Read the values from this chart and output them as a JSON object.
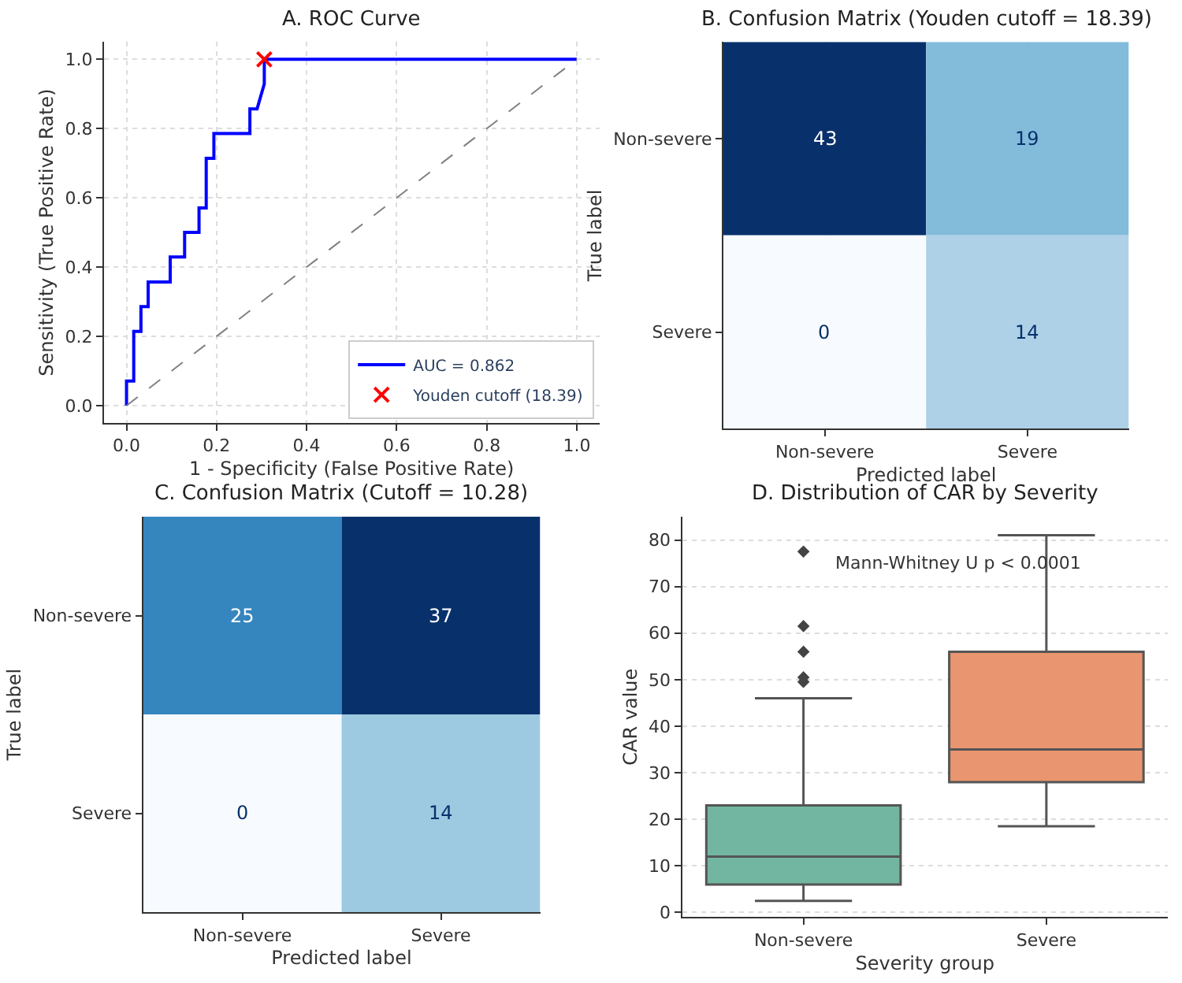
{
  "chart_data": [
    {
      "type": "line",
      "title": "A. ROC Curve",
      "xlabel": "1 - Specificity (False Positive Rate)",
      "ylabel": "Sensitivity (True Positive Rate)",
      "xlim": [
        -0.05,
        1.05
      ],
      "ylim": [
        -0.05,
        1.05
      ],
      "xticks": [
        {
          "value": 0,
          "label": "0.0"
        },
        {
          "value": 0.2,
          "label": "0.2"
        },
        {
          "value": 0.4,
          "label": "0.4"
        },
        {
          "value": 0.6,
          "label": "0.6"
        },
        {
          "value": 0.8,
          "label": "0.8"
        },
        {
          "value": 1,
          "label": "1.0"
        }
      ],
      "yticks": [
        {
          "value": 0,
          "label": "0.0"
        },
        {
          "value": 0.2,
          "label": "0.2"
        },
        {
          "value": 0.4,
          "label": "0.4"
        },
        {
          "value": 0.6,
          "label": "0.6"
        },
        {
          "value": 0.8,
          "label": "0.8"
        },
        {
          "value": 1,
          "label": "1.0"
        }
      ],
      "grid": true,
      "legend": "bottom right",
      "series": [
        {
          "name": "AUC = 0.862",
          "color": "#0000ff",
          "x": [
            0,
            0,
            0.016,
            0.016,
            0.032,
            0.032,
            0.048,
            0.048,
            0.097,
            0.097,
            0.129,
            0.129,
            0.161,
            0.161,
            0.177,
            0.177,
            0.194,
            0.194,
            0.274,
            0.274,
            0.29,
            0.306,
            0.306,
            1
          ],
          "values": [
            0,
            0.071,
            0.071,
            0.214,
            0.214,
            0.286,
            0.286,
            0.357,
            0.357,
            0.429,
            0.429,
            0.5,
            0.5,
            0.571,
            0.571,
            0.714,
            0.714,
            0.786,
            0.786,
            0.857,
            0.857,
            0.929,
            1,
            1
          ],
          "marker": "none",
          "line_style": "solid"
        },
        {
          "type": "line",
          "color": "#808080",
          "x": [
            0,
            1
          ],
          "values": [
            0,
            1
          ],
          "marker": "none",
          "line_style": "dashed"
        },
        {
          "type": "scatter",
          "name": "Youden cutoff (18.39)",
          "color": "#ff0000",
          "x": [
            0.306
          ],
          "values": [
            1
          ],
          "marker": "cross"
        }
      ]
    },
    {
      "type": "heatmap",
      "title": "B. Confusion Matrix (Youden cutoff = 18.39)",
      "xlabel": "Predicted label",
      "ylabel": "True label",
      "categories": [
        "Non-severe",
        "Severe"
      ],
      "y_categories": [
        "Non-severe",
        "Severe"
      ],
      "cells": [
        [
          43,
          19
        ],
        [
          0,
          14
        ]
      ],
      "data_labels": true,
      "grid": true
    },
    {
      "type": "heatmap",
      "title": "C. Confusion Matrix (Cutoff = 10.28)",
      "xlabel": "Predicted label",
      "ylabel": "True label",
      "categories": [
        "Non-severe",
        "Severe"
      ],
      "y_categories": [
        "Non-severe",
        "Severe"
      ],
      "cells": [
        [
          25,
          37
        ],
        [
          0,
          14
        ]
      ],
      "data_labels": true,
      "grid": true
    },
    {
      "type": "box",
      "title": "D. Distribution of CAR by Severity",
      "xlabel": "Severity group",
      "ylabel": "CAR value",
      "categories": [
        "Non-severe",
        "Severe"
      ],
      "ylim": [
        -1,
        85
      ],
      "yticks": [
        0,
        10,
        20,
        30,
        40,
        50,
        60,
        70,
        80
      ],
      "grid": "y",
      "colors": [
        "#72b6a1",
        "#e9956f"
      ],
      "boxes": [
        {
          "low": 2.5,
          "q1": 6,
          "median": 12,
          "q3": 23,
          "high": 46,
          "outliers": [
            49.5,
            50.5,
            56,
            61.5,
            77.5
          ]
        },
        {
          "low": 18.5,
          "q1": 28,
          "median": 35,
          "q3": 56,
          "high": 81
        }
      ],
      "annotations": [
        "Mann-Whitney U p < 0.0001"
      ]
    }
  ]
}
